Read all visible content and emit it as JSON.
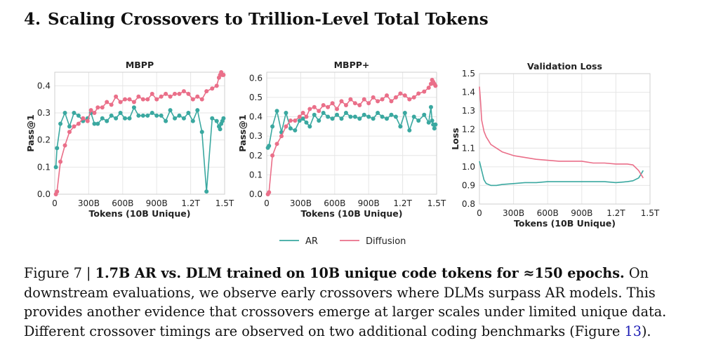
{
  "section": {
    "number": "4.",
    "title": "Scaling Crossovers to Trillion-Level Total Tokens"
  },
  "legend": {
    "items": [
      {
        "name": "AR",
        "color": "#3aa8a0"
      },
      {
        "name": "Diffusion",
        "color": "#ea6f89"
      }
    ]
  },
  "chart_data": [
    {
      "type": "line",
      "title": "MBPP",
      "xlabel": "Tokens (10B Unique)",
      "ylabel": "Pass@1",
      "xlim": [
        0,
        1500
      ],
      "ylim": [
        0,
        0.45
      ],
      "xticks": [
        0,
        300,
        600,
        900,
        1200,
        1500
      ],
      "xtick_labels": [
        "0",
        "300B",
        "600B",
        "900B",
        "1.2T",
        "1.5T"
      ],
      "yticks": [
        0.0,
        0.1,
        0.2,
        0.3,
        0.4
      ],
      "ytick_labels": [
        "0.0",
        "0.1",
        "0.2",
        "0.3",
        "0.4"
      ],
      "markers": true,
      "series": [
        {
          "name": "AR",
          "color": "#3aa8a0",
          "x": [
            10,
            20,
            50,
            90,
            130,
            170,
            210,
            250,
            290,
            320,
            350,
            380,
            420,
            460,
            500,
            540,
            580,
            620,
            660,
            700,
            740,
            780,
            820,
            860,
            900,
            940,
            980,
            1020,
            1060,
            1100,
            1140,
            1180,
            1220,
            1260,
            1300,
            1340,
            1390,
            1430,
            1450,
            1460,
            1470,
            1480,
            1490
          ],
          "y": [
            0.1,
            0.17,
            0.26,
            0.3,
            0.25,
            0.3,
            0.29,
            0.27,
            0.28,
            0.3,
            0.26,
            0.26,
            0.28,
            0.27,
            0.29,
            0.28,
            0.3,
            0.28,
            0.28,
            0.32,
            0.29,
            0.29,
            0.29,
            0.3,
            0.29,
            0.29,
            0.27,
            0.31,
            0.28,
            0.29,
            0.28,
            0.3,
            0.27,
            0.31,
            0.23,
            0.01,
            0.28,
            0.27,
            0.25,
            0.24,
            0.26,
            0.27,
            0.28
          ]
        },
        {
          "name": "Diffusion",
          "color": "#ea6f89",
          "x": [
            10,
            20,
            50,
            90,
            130,
            170,
            210,
            250,
            290,
            320,
            350,
            380,
            420,
            460,
            500,
            540,
            580,
            620,
            660,
            700,
            740,
            780,
            820,
            860,
            900,
            940,
            980,
            1020,
            1060,
            1100,
            1140,
            1180,
            1220,
            1260,
            1300,
            1340,
            1390,
            1430,
            1450,
            1460,
            1470,
            1480,
            1490
          ],
          "y": [
            0.0,
            0.01,
            0.12,
            0.18,
            0.23,
            0.25,
            0.26,
            0.28,
            0.27,
            0.31,
            0.3,
            0.32,
            0.32,
            0.34,
            0.33,
            0.36,
            0.34,
            0.35,
            0.35,
            0.34,
            0.36,
            0.35,
            0.35,
            0.37,
            0.35,
            0.36,
            0.37,
            0.36,
            0.37,
            0.37,
            0.38,
            0.37,
            0.35,
            0.36,
            0.35,
            0.38,
            0.39,
            0.4,
            0.43,
            0.44,
            0.45,
            0.44,
            0.44
          ]
        }
      ]
    },
    {
      "type": "line",
      "title": "MBPP+",
      "xlabel": "Tokens (10B Unique)",
      "ylabel": "Pass@1",
      "xlim": [
        0,
        1500
      ],
      "ylim": [
        0,
        0.63
      ],
      "xticks": [
        0,
        300,
        600,
        900,
        1200,
        1500
      ],
      "xtick_labels": [
        "0",
        "300B",
        "600B",
        "900B",
        "1.2T",
        "1.5T"
      ],
      "yticks": [
        0.0,
        0.1,
        0.2,
        0.3,
        0.4,
        0.5,
        0.6
      ],
      "ytick_labels": [
        "0.0",
        "0.1",
        "0.2",
        "0.3",
        "0.4",
        "0.5",
        "0.6"
      ],
      "markers": true,
      "series": [
        {
          "name": "AR",
          "color": "#3aa8a0",
          "x": [
            10,
            20,
            50,
            90,
            130,
            170,
            210,
            250,
            290,
            320,
            350,
            380,
            420,
            460,
            500,
            540,
            580,
            620,
            660,
            700,
            740,
            780,
            820,
            860,
            900,
            940,
            980,
            1020,
            1060,
            1100,
            1140,
            1180,
            1220,
            1260,
            1300,
            1340,
            1390,
            1430,
            1450,
            1460,
            1470,
            1480,
            1490
          ],
          "y": [
            0.24,
            0.25,
            0.35,
            0.43,
            0.32,
            0.42,
            0.34,
            0.33,
            0.38,
            0.39,
            0.37,
            0.35,
            0.41,
            0.38,
            0.42,
            0.4,
            0.39,
            0.41,
            0.39,
            0.42,
            0.4,
            0.4,
            0.39,
            0.41,
            0.4,
            0.39,
            0.42,
            0.4,
            0.39,
            0.41,
            0.4,
            0.35,
            0.42,
            0.33,
            0.4,
            0.38,
            0.41,
            0.37,
            0.45,
            0.38,
            0.36,
            0.34,
            0.36
          ]
        },
        {
          "name": "Diffusion",
          "color": "#ea6f89",
          "x": [
            10,
            20,
            50,
            90,
            130,
            170,
            210,
            250,
            290,
            320,
            350,
            380,
            420,
            460,
            500,
            540,
            580,
            620,
            660,
            700,
            740,
            780,
            820,
            860,
            900,
            940,
            980,
            1020,
            1060,
            1100,
            1140,
            1180,
            1220,
            1260,
            1300,
            1340,
            1390,
            1430,
            1450,
            1460,
            1470,
            1480,
            1490
          ],
          "y": [
            0.0,
            0.01,
            0.2,
            0.26,
            0.3,
            0.35,
            0.38,
            0.38,
            0.4,
            0.42,
            0.4,
            0.44,
            0.45,
            0.43,
            0.46,
            0.45,
            0.47,
            0.44,
            0.48,
            0.46,
            0.49,
            0.47,
            0.46,
            0.49,
            0.47,
            0.5,
            0.48,
            0.49,
            0.51,
            0.48,
            0.5,
            0.52,
            0.51,
            0.49,
            0.5,
            0.52,
            0.53,
            0.55,
            0.57,
            0.59,
            0.58,
            0.57,
            0.56
          ]
        }
      ]
    },
    {
      "type": "line",
      "title": "Validation Loss",
      "xlabel": "Tokens (10B Unique)",
      "ylabel": "Loss",
      "xlim": [
        0,
        1500
      ],
      "ylim": [
        0.8,
        1.5
      ],
      "xticks": [
        0,
        300,
        600,
        900,
        1200,
        1500
      ],
      "xtick_labels": [
        "0",
        "300B",
        "600B",
        "900B",
        "1.2T",
        "1.5T"
      ],
      "yticks": [
        0.8,
        0.9,
        1.0,
        1.1,
        1.2,
        1.3,
        1.4,
        1.5
      ],
      "ytick_labels": [
        "0.8",
        "0.9",
        "1.0",
        "1.1",
        "1.2",
        "1.3",
        "1.4",
        "1.5"
      ],
      "markers": false,
      "series": [
        {
          "name": "AR",
          "color": "#3aa8a0",
          "x": [
            0,
            20,
            40,
            60,
            80,
            100,
            150,
            200,
            300,
            400,
            500,
            600,
            700,
            800,
            900,
            1000,
            1100,
            1200,
            1300,
            1350,
            1400,
            1440
          ],
          "y": [
            1.03,
            0.98,
            0.93,
            0.91,
            0.905,
            0.9,
            0.9,
            0.905,
            0.91,
            0.915,
            0.915,
            0.92,
            0.92,
            0.92,
            0.92,
            0.92,
            0.92,
            0.915,
            0.92,
            0.925,
            0.94,
            0.98
          ]
        },
        {
          "name": "Diffusion",
          "color": "#ea6f89",
          "x": [
            0,
            10,
            20,
            40,
            60,
            80,
            100,
            150,
            200,
            250,
            300,
            400,
            500,
            600,
            700,
            800,
            900,
            1000,
            1100,
            1200,
            1300,
            1350,
            1400,
            1440
          ],
          "y": [
            1.43,
            1.35,
            1.25,
            1.19,
            1.16,
            1.14,
            1.12,
            1.1,
            1.08,
            1.07,
            1.06,
            1.05,
            1.04,
            1.035,
            1.03,
            1.03,
            1.03,
            1.02,
            1.02,
            1.015,
            1.015,
            1.01,
            0.98,
            0.94
          ]
        }
      ]
    }
  ],
  "caption": {
    "label": "Figure 7 | ",
    "bold": "1.7B AR vs. DLM trained on 10B unique code tokens for ≈150 epochs.",
    "text": " On downstream evaluations, we observe early crossovers where DLMs surpass AR models.  This provides another evidence that crossovers emerge at larger scales under limited unique data.  Different crossover timings are observed on two additional coding benchmarks (Figure ",
    "ref": "13",
    "tail": ")."
  }
}
